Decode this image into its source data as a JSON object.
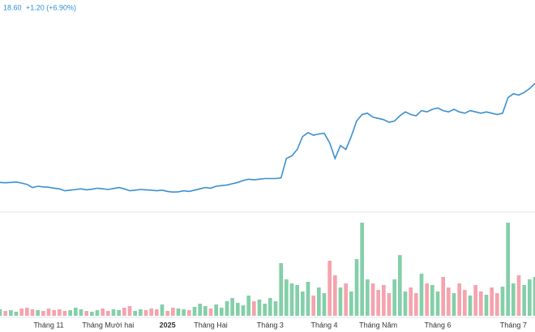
{
  "header": {
    "price": "18.60",
    "change": "+1.20 (+6.90%)"
  },
  "chart_data": {
    "type": "line",
    "categories": [
      null,
      null,
      null,
      null,
      null,
      null,
      null,
      null,
      null,
      "Tháng 11",
      null,
      null,
      null,
      null,
      null,
      null,
      null,
      null,
      null,
      null,
      "Tháng Mười hai",
      null,
      null,
      null,
      null,
      null,
      null,
      null,
      null,
      null,
      null,
      "2025",
      null,
      null,
      null,
      null,
      null,
      null,
      null,
      "Tháng Hai",
      null,
      null,
      null,
      null,
      null,
      null,
      null,
      null,
      null,
      null,
      "Tháng 3",
      null,
      null,
      null,
      null,
      null,
      null,
      null,
      null,
      null,
      "Tháng 4",
      null,
      null,
      null,
      null,
      null,
      null,
      null,
      null,
      null,
      "Tháng Năm",
      null,
      null,
      null,
      null,
      null,
      null,
      null,
      null,
      null,
      null,
      "Tháng 6",
      null,
      null,
      null,
      null,
      null,
      null,
      null,
      null,
      null,
      null,
      null,
      null,
      null,
      "Tháng 7",
      null,
      null,
      null,
      null
    ],
    "series": [
      {
        "name": "price",
        "color": "#3b8fd0",
        "values": [
          10.95,
          10.92,
          10.95,
          10.98,
          10.9,
          10.8,
          10.55,
          10.65,
          10.6,
          10.58,
          10.5,
          10.45,
          10.3,
          10.35,
          10.4,
          10.45,
          10.38,
          10.42,
          10.5,
          10.45,
          10.4,
          10.48,
          10.55,
          10.45,
          10.3,
          10.35,
          10.4,
          10.38,
          10.35,
          10.3,
          10.35,
          10.25,
          10.2,
          10.22,
          10.3,
          10.25,
          10.35,
          10.45,
          10.55,
          10.5,
          10.65,
          10.7,
          10.75,
          10.85,
          10.95,
          11.1,
          11.2,
          11.15,
          11.2,
          11.25,
          11.25,
          11.25,
          11.3,
          12.8,
          13.0,
          13.5,
          14.5,
          14.8,
          14.6,
          14.7,
          14.75,
          14.0,
          12.8,
          13.8,
          13.5,
          14.5,
          15.7,
          16.2,
          16.3,
          16.0,
          15.9,
          15.8,
          15.6,
          15.7,
          16.1,
          16.4,
          16.2,
          16.1,
          16.5,
          16.4,
          16.6,
          16.7,
          16.5,
          16.4,
          16.6,
          16.4,
          16.3,
          16.5,
          16.4,
          16.3,
          16.4,
          16.3,
          16.2,
          16.3,
          17.5,
          17.8,
          17.7,
          17.9,
          18.2,
          18.6
        ]
      },
      {
        "name": "volume",
        "axis": "y2",
        "values": [
          8,
          6,
          7,
          5,
          9,
          10,
          8,
          7,
          6,
          9,
          7,
          8,
          6,
          7,
          10,
          8,
          6,
          5,
          7,
          9,
          6,
          8,
          7,
          10,
          12,
          6,
          8,
          7,
          9,
          8,
          14,
          6,
          10,
          9,
          8,
          7,
          11,
          15,
          12,
          9,
          14,
          10,
          18,
          22,
          16,
          13,
          25,
          18,
          20,
          15,
          22,
          18,
          65,
          45,
          40,
          38,
          30,
          42,
          25,
          35,
          28,
          68,
          50,
          35,
          40,
          30,
          70,
          115,
          45,
          40,
          32,
          38,
          28,
          45,
          75,
          30,
          35,
          28,
          52,
          40,
          38,
          30,
          48,
          35,
          28,
          40,
          32,
          25,
          38,
          30,
          26,
          35,
          28,
          36,
          115,
          40,
          50,
          38,
          45,
          48
        ]
      }
    ],
    "up_color": "#83cfa9",
    "down_color": "#f5a3ad",
    "ylim": [
      8.9,
      23.8
    ],
    "y2lim": [
      0,
      140
    ]
  }
}
